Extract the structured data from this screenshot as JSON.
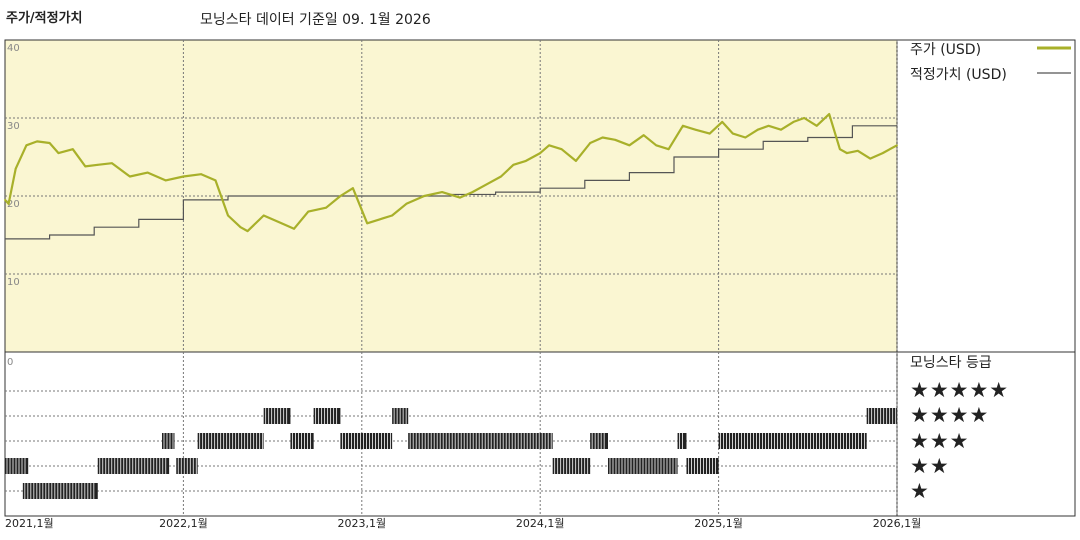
{
  "header": {
    "title": "주가/적정가치",
    "subtitle": "모닝스타 데이터 기준일 09. 1월 2026"
  },
  "legend": {
    "price_label": "주가 (USD)",
    "fair_label": "적정가치 (USD)",
    "rating_title": "모닝스타 등급",
    "stars": [
      "★★★★★",
      "★★★★",
      "★★★",
      "★★",
      "★"
    ]
  },
  "colors": {
    "price": "#a8b02a",
    "fair": "#555555",
    "plot_bg": "#faf6d2",
    "bar": "#222222"
  },
  "chart_data": {
    "type": "line",
    "x_ticks": [
      "2021,1월",
      "2022,1월",
      "2023,1월",
      "2024,1월",
      "2025,1월",
      "2026,1월"
    ],
    "y_ticks": [
      40,
      30,
      20,
      10
    ],
    "ylim": [
      0,
      40
    ],
    "rating_axis_label": "0",
    "grid": true,
    "legend_position": "right",
    "series": [
      {
        "name": "주가 (USD)",
        "x": [
          2021.0,
          2021.02,
          2021.06,
          2021.12,
          2021.18,
          2021.25,
          2021.3,
          2021.38,
          2021.45,
          2021.52,
          2021.6,
          2021.7,
          2021.8,
          2021.9,
          2022.0,
          2022.1,
          2022.18,
          2022.25,
          2022.32,
          2022.36,
          2022.45,
          2022.55,
          2022.62,
          2022.7,
          2022.8,
          2022.88,
          2022.95,
          2023.03,
          2023.1,
          2023.17,
          2023.25,
          2023.35,
          2023.45,
          2023.55,
          2023.62,
          2023.7,
          2023.78,
          2023.85,
          2023.92,
          2024.0,
          2024.05,
          2024.12,
          2024.2,
          2024.28,
          2024.35,
          2024.42,
          2024.5,
          2024.58,
          2024.65,
          2024.72,
          2024.8,
          2024.87,
          2024.95,
          2025.02,
          2025.08,
          2025.15,
          2025.22,
          2025.28,
          2025.35,
          2025.42,
          2025.48,
          2025.55,
          2025.62,
          2025.68,
          2025.72,
          2025.78,
          2025.85,
          2025.92,
          2026.0
        ],
        "values": [
          19.5,
          19.0,
          23.5,
          26.5,
          27.0,
          26.8,
          25.5,
          26.0,
          23.8,
          24.0,
          24.2,
          22.5,
          23.0,
          22.0,
          22.5,
          22.8,
          22.0,
          17.5,
          16.0,
          15.5,
          17.5,
          16.5,
          15.8,
          18.0,
          18.5,
          20.0,
          21.0,
          16.5,
          17.0,
          17.5,
          19.0,
          20.0,
          20.5,
          19.8,
          20.5,
          21.5,
          22.5,
          24.0,
          24.5,
          25.5,
          26.5,
          26.0,
          24.5,
          26.8,
          27.5,
          27.2,
          26.5,
          27.8,
          26.5,
          26.0,
          29.0,
          28.5,
          28.0,
          29.5,
          28.0,
          27.5,
          28.5,
          29.0,
          28.5,
          29.5,
          30.0,
          29.0,
          30.5,
          26.0,
          25.5,
          25.8,
          24.8,
          25.5,
          26.5
        ]
      },
      {
        "name": "적정가치 (USD)",
        "x": [
          2021.0,
          2021.25,
          2021.5,
          2021.75,
          2022.0,
          2022.25,
          2022.5,
          2022.75,
          2023.0,
          2023.25,
          2023.5,
          2023.75,
          2024.0,
          2024.25,
          2024.5,
          2024.75,
          2025.0,
          2025.25,
          2025.5,
          2025.75,
          2026.0
        ],
        "values": [
          14.5,
          15.0,
          16.0,
          17.0,
          19.5,
          20.0,
          20.0,
          20.0,
          20.0,
          20.0,
          20.2,
          20.5,
          21.0,
          22.0,
          23.0,
          25.0,
          26.0,
          27.0,
          27.5,
          29.0,
          29.0
        ]
      }
    ],
    "rating_series": {
      "name": "모닝스타 등급",
      "intervals": [
        {
          "start": 2021.0,
          "end": 2021.13,
          "stars": 2
        },
        {
          "start": 2021.1,
          "end": 2021.52,
          "stars": 1
        },
        {
          "start": 2021.52,
          "end": 2021.92,
          "stars": 2
        },
        {
          "start": 2021.88,
          "end": 2021.95,
          "stars": 3
        },
        {
          "start": 2021.96,
          "end": 2022.08,
          "stars": 2
        },
        {
          "start": 2022.08,
          "end": 2022.45,
          "stars": 3
        },
        {
          "start": 2022.45,
          "end": 2022.6,
          "stars": 4
        },
        {
          "start": 2022.6,
          "end": 2022.73,
          "stars": 3
        },
        {
          "start": 2022.73,
          "end": 2022.88,
          "stars": 4
        },
        {
          "start": 2022.88,
          "end": 2023.17,
          "stars": 3
        },
        {
          "start": 2023.17,
          "end": 2023.26,
          "stars": 4
        },
        {
          "start": 2023.26,
          "end": 2024.07,
          "stars": 3
        },
        {
          "start": 2024.07,
          "end": 2024.28,
          "stars": 2
        },
        {
          "start": 2024.28,
          "end": 2024.38,
          "stars": 3
        },
        {
          "start": 2024.38,
          "end": 2024.77,
          "stars": 2
        },
        {
          "start": 2024.77,
          "end": 2024.82,
          "stars": 3
        },
        {
          "start": 2024.82,
          "end": 2025.0,
          "stars": 2
        },
        {
          "start": 2025.0,
          "end": 2025.83,
          "stars": 3
        },
        {
          "start": 2025.83,
          "end": 2026.0,
          "stars": 4
        }
      ]
    }
  }
}
